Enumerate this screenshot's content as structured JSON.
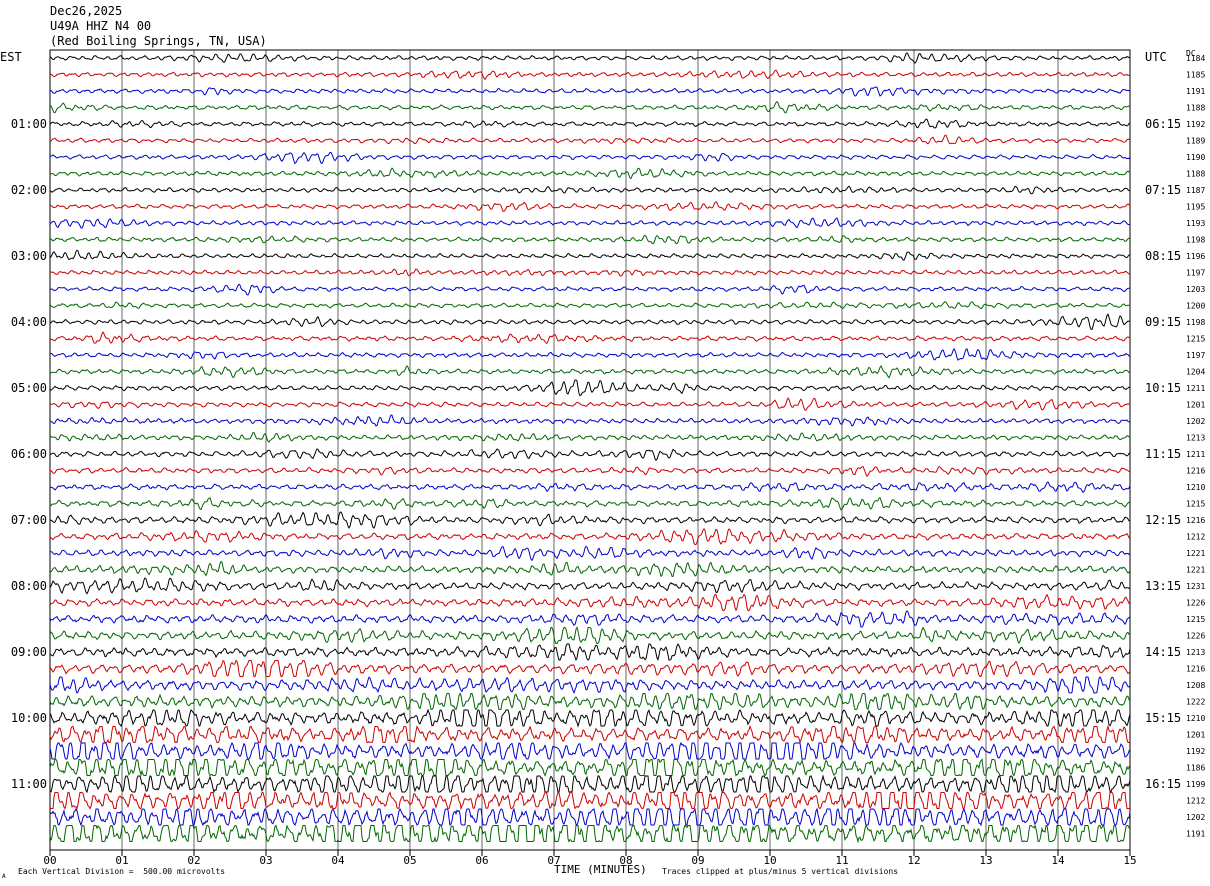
{
  "header": {
    "date": "Dec26,2025",
    "station": "U49A HHZ N4 00",
    "location": "(Red Boiling Springs, TN, USA)"
  },
  "left_tz": "EST",
  "right_tz": "UTC",
  "right_col_head": "DC",
  "footer": {
    "scale_note": "Each Vertical Division =  500.00 microvolts",
    "clip_note": "Traces clipped at plus/minus 5 vertical divisions",
    "corner_mark": "A"
  },
  "chart_data": {
    "type": "line",
    "title": "",
    "xlabel": "TIME (MINUTES)",
    "xlim": [
      0,
      15
    ],
    "x_ticks": [
      "00",
      "01",
      "02",
      "03",
      "04",
      "05",
      "06",
      "07",
      "08",
      "09",
      "10",
      "11",
      "12",
      "13",
      "14",
      "15"
    ],
    "trace_colors": [
      "#000000",
      "#cc0000",
      "#0000cc",
      "#006600"
    ],
    "left_hour_labels": [
      "01:00",
      "02:00",
      "03:00",
      "04:00",
      "05:00",
      "06:00",
      "07:00",
      "08:00",
      "09:00",
      "10:00",
      "11:00"
    ],
    "right_hour_labels": [
      "06:15",
      "07:15",
      "08:15",
      "09:15",
      "10:15",
      "11:15",
      "12:15",
      "13:15",
      "14:15",
      "15:15",
      "16:15"
    ],
    "trace_dc_offsets": [
      1184,
      1185,
      1191,
      1188,
      1192,
      1189,
      1190,
      1188,
      1187,
      1195,
      1193,
      1198,
      1196,
      1197,
      1203,
      1200,
      1198,
      1215,
      1197,
      1204,
      1211,
      1201,
      1202,
      1213,
      1211,
      1216,
      1210,
      1215,
      1216,
      1212,
      1221,
      1221,
      1231,
      1226,
      1215,
      1226,
      1213,
      1216,
      1208,
      1222,
      1210,
      1201,
      1192,
      1186,
      1199,
      1212,
      1202,
      1191
    ],
    "trace_relative_amplitude": [
      0.9,
      0.9,
      0.9,
      0.9,
      0.9,
      0.9,
      0.9,
      0.9,
      0.9,
      0.9,
      0.9,
      0.9,
      0.9,
      0.9,
      0.9,
      0.9,
      0.95,
      0.95,
      0.95,
      0.95,
      1.0,
      1.0,
      1.0,
      1.0,
      1.1,
      1.1,
      1.1,
      1.2,
      1.3,
      1.3,
      1.3,
      1.4,
      1.5,
      1.5,
      1.6,
      1.7,
      1.8,
      1.9,
      2.0,
      2.3,
      2.6,
      2.8,
      3.0,
      3.2,
      3.4,
      3.6,
      3.8,
      4.0
    ]
  }
}
